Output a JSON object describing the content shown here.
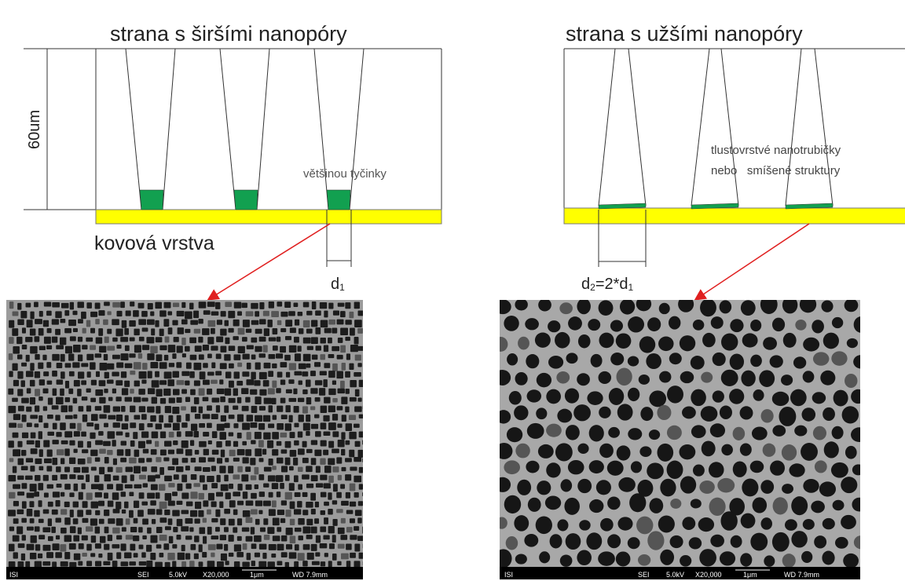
{
  "left": {
    "title": "strana s širšími nanopóry",
    "scale_label": "60um",
    "pore_label": "většinou tyčinky",
    "layer_label": "kovová vrstva",
    "width_label": {
      "base": "d",
      "sub": "1"
    },
    "caption": [
      "ISI",
      "SEI",
      "5.0kV",
      "X20,000",
      "1μm",
      "WD 7.9mm"
    ]
  },
  "right": {
    "title": "strana s užšími nanopóry",
    "pore_label": [
      "tlustovrstvé nanotrubičky",
      "nebo   smíšené struktury"
    ],
    "width_label": [
      "d",
      "2",
      "=2*d",
      "1"
    ],
    "caption": [
      "ISI",
      "SEI",
      "5.0kV",
      "X20,000",
      "1μm",
      "WD 7.9mm"
    ]
  }
}
